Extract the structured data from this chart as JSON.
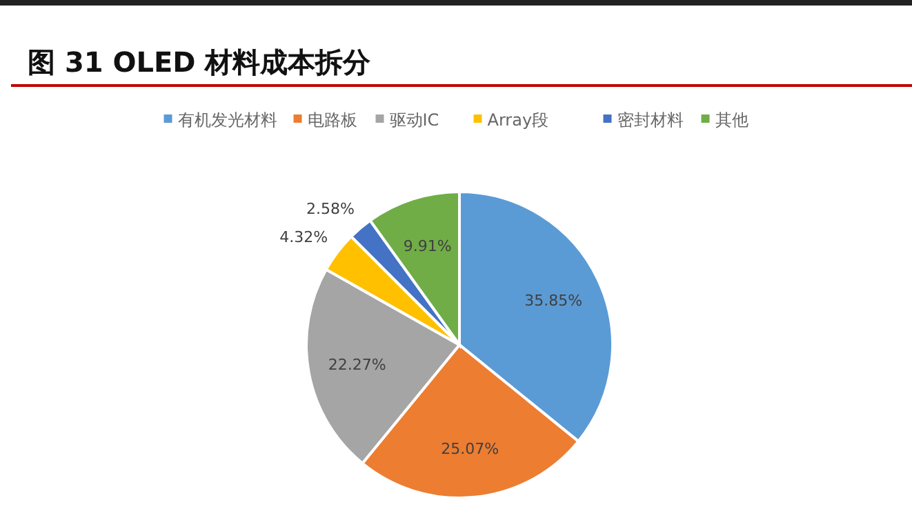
{
  "chart_data": {
    "type": "pie",
    "title": "图 31 OLED 材料成本拆分",
    "categories": [
      "有机发光材料",
      "电路板",
      "驱动IC",
      "Array段",
      "密封材料",
      "其他"
    ],
    "values": [
      35.85,
      25.07,
      22.27,
      4.32,
      2.58,
      9.91
    ],
    "colors": [
      "#5b9bd5",
      "#ed7d31",
      "#a5a5a5",
      "#ffc000",
      "#4472c4",
      "#70ad47"
    ],
    "value_labels": [
      "35.85%",
      "25.07%",
      "22.27%",
      "4.32%",
      "2.58%",
      "9.91%"
    ],
    "legend": "top"
  }
}
